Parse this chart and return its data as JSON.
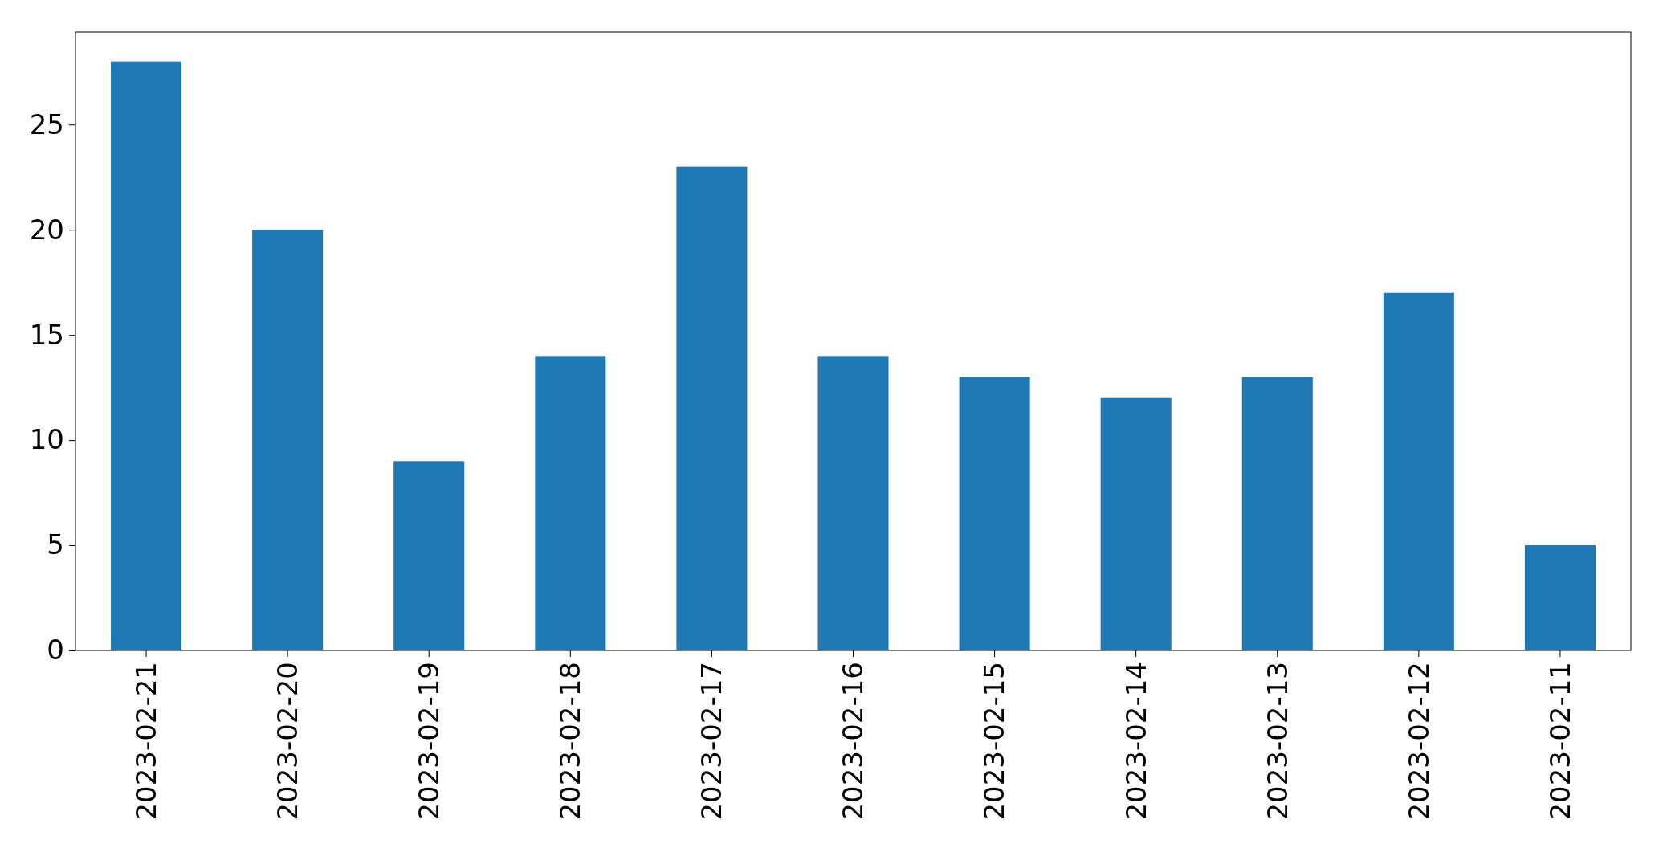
{
  "chart_data": {
    "type": "bar",
    "categories": [
      "2023-02-21",
      "2023-02-20",
      "2023-02-19",
      "2023-02-18",
      "2023-02-17",
      "2023-02-16",
      "2023-02-15",
      "2023-02-14",
      "2023-02-13",
      "2023-02-12",
      "2023-02-11"
    ],
    "values": [
      28,
      20,
      9,
      14,
      23,
      14,
      13,
      12,
      13,
      17,
      5
    ],
    "color": "#1f77b4",
    "ylim": [
      0,
      29.4
    ],
    "yticks": [
      0,
      5,
      10,
      15,
      20,
      25
    ],
    "grid": false
  }
}
